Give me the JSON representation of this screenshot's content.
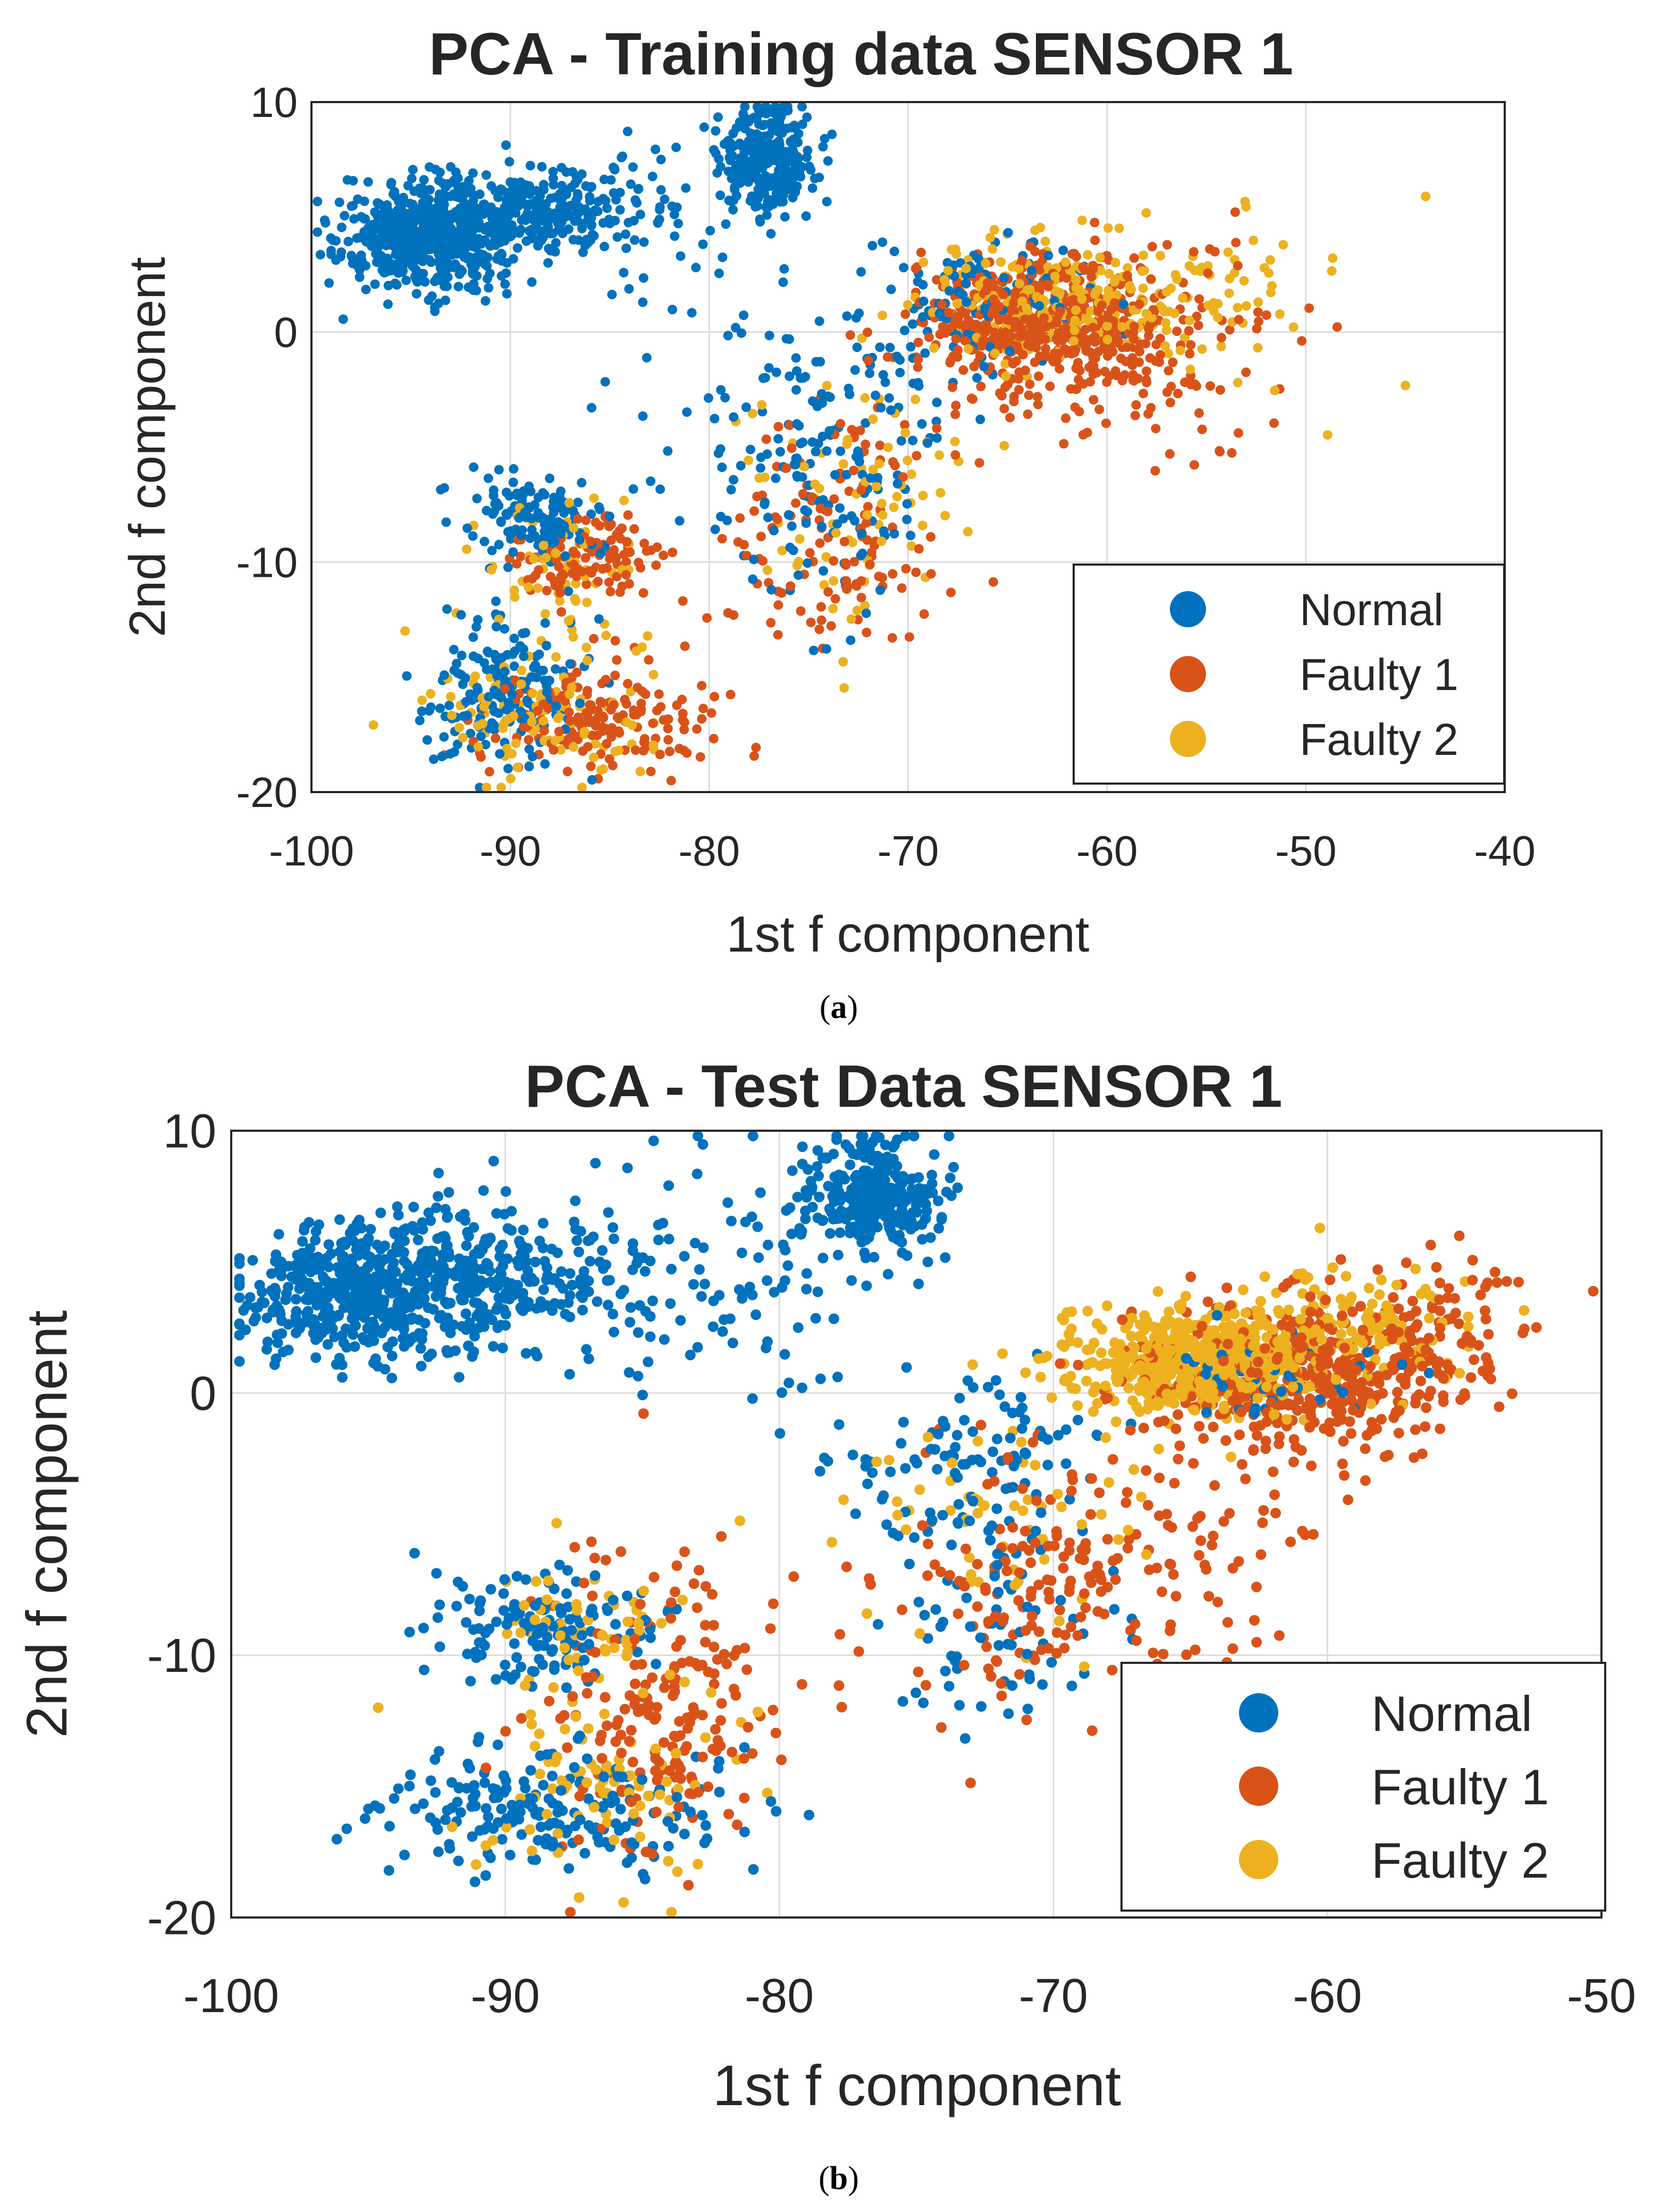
{
  "colors": {
    "normal": "#0072BD",
    "faulty1": "#D95319",
    "faulty2": "#EDB120"
  },
  "chart_data": [
    {
      "type": "scatter",
      "caption": "a",
      "title": "PCA - Training data SENSOR 1",
      "xlabel": "1st f component",
      "ylabel": "2nd f component",
      "xlim": [
        -100,
        -40
      ],
      "ylim": [
        -20,
        10
      ],
      "xticks": [
        "-100",
        "-90",
        "-80",
        "-70",
        "-60",
        "-50",
        "-40"
      ],
      "yticks": [
        "-20",
        "-10",
        "0",
        "10"
      ],
      "grid": true,
      "legend_position": "bottom-right",
      "series": [
        {
          "name": "Normal",
          "color": "#0072BD",
          "clusters": [
            {
              "cx": -94.5,
              "cy": 4.0,
              "sx": 2.0,
              "sy": 1.2,
              "n": 520
            },
            {
              "cx": -89.5,
              "cy": 5.2,
              "sx": 2.2,
              "sy": 0.9,
              "n": 260
            },
            {
              "cx": -84.0,
              "cy": 5.5,
              "sx": 3.0,
              "sy": 1.6,
              "n": 90
            },
            {
              "cx": -77.0,
              "cy": 7.5,
              "sx": 1.2,
              "sy": 1.2,
              "n": 280
            },
            {
              "cx": -66.5,
              "cy": 1.5,
              "sx": 3.0,
              "sy": 1.5,
              "n": 100
            },
            {
              "cx": -89.0,
              "cy": -8.0,
              "sx": 1.6,
              "sy": 0.9,
              "n": 130
            },
            {
              "cx": -90.5,
              "cy": -15.5,
              "sx": 1.8,
              "sy": 1.6,
              "n": 180
            },
            {
              "cx": -74.5,
              "cy": -6.5,
              "sx": 2.6,
              "sy": 3.2,
              "n": 130
            },
            {
              "cx": -70.5,
              "cy": -3.5,
              "sx": 1.6,
              "sy": 2.5,
              "n": 40
            },
            {
              "cx": -80.0,
              "cy": -2.5,
              "sx": 3.5,
              "sy": 5.0,
              "n": 30
            }
          ]
        },
        {
          "name": "Faulty 1",
          "color": "#D95319",
          "clusters": [
            {
              "cx": -63.5,
              "cy": 0.3,
              "sx": 3.2,
              "sy": 1.5,
              "n": 520
            },
            {
              "cx": -57.0,
              "cy": -1.5,
              "sx": 3.2,
              "sy": 2.5,
              "n": 90
            },
            {
              "cx": -86.0,
              "cy": -10.0,
              "sx": 1.8,
              "sy": 1.0,
              "n": 110
            },
            {
              "cx": -85.5,
              "cy": -17.0,
              "sx": 3.0,
              "sy": 1.2,
              "n": 170
            },
            {
              "cx": -73.5,
              "cy": -8.5,
              "sx": 2.8,
              "sy": 3.0,
              "n": 130
            }
          ]
        },
        {
          "name": "Faulty 2",
          "color": "#EDB120",
          "clusters": [
            {
              "cx": -63.0,
              "cy": 1.5,
              "sx": 3.0,
              "sy": 1.3,
              "n": 220
            },
            {
              "cx": -55.0,
              "cy": 1.5,
              "sx": 3.5,
              "sy": 1.8,
              "n": 70
            },
            {
              "cx": -87.5,
              "cy": -10.0,
              "sx": 2.0,
              "sy": 1.2,
              "n": 60
            },
            {
              "cx": -88.5,
              "cy": -16.5,
              "sx": 2.8,
              "sy": 1.6,
              "n": 120
            },
            {
              "cx": -72.5,
              "cy": -7.5,
              "sx": 2.8,
              "sy": 3.0,
              "n": 80
            }
          ]
        }
      ]
    },
    {
      "type": "scatter",
      "caption": "b",
      "title": "PCA - Test Data SENSOR 1",
      "xlabel": "1st f component",
      "ylabel": "2nd f component",
      "xlim": [
        -100,
        -50
      ],
      "ylim": [
        -20,
        10
      ],
      "xticks": [
        "-100",
        "-90",
        "-80",
        "-70",
        "-60",
        "-50"
      ],
      "yticks": [
        "-20",
        "-10",
        "0",
        "10"
      ],
      "grid": true,
      "legend_position": "bottom-right",
      "series": [
        {
          "name": "Normal",
          "color": "#0072BD",
          "clusters": [
            {
              "cx": -95.0,
              "cy": 3.8,
              "sx": 2.3,
              "sy": 1.3,
              "n": 520
            },
            {
              "cx": -90.5,
              "cy": 4.5,
              "sx": 2.0,
              "sy": 1.3,
              "n": 200
            },
            {
              "cx": -84.0,
              "cy": 4.5,
              "sx": 3.0,
              "sy": 2.0,
              "n": 90
            },
            {
              "cx": -76.5,
              "cy": 7.5,
              "sx": 1.2,
              "sy": 1.1,
              "n": 280
            },
            {
              "cx": -73.0,
              "cy": -3.0,
              "sx": 2.5,
              "sy": 2.0,
              "n": 110
            },
            {
              "cx": -89.0,
              "cy": -9.0,
              "sx": 2.2,
              "sy": 1.2,
              "n": 140
            },
            {
              "cx": -88.0,
              "cy": -16.0,
              "sx": 3.3,
              "sy": 1.3,
              "n": 200
            },
            {
              "cx": -71.5,
              "cy": -9.5,
              "sx": 2.4,
              "sy": 1.8,
              "n": 60
            },
            {
              "cx": -62.0,
              "cy": 0.5,
              "sx": 2.2,
              "sy": 1.0,
              "n": 50
            },
            {
              "cx": -80.0,
              "cy": 4.0,
              "sx": 3.0,
              "sy": 3.5,
              "n": 40
            }
          ]
        },
        {
          "name": "Faulty 1",
          "color": "#D95319",
          "clusters": [
            {
              "cx": -61.5,
              "cy": 0.5,
              "sx": 3.0,
              "sy": 1.5,
              "n": 360
            },
            {
              "cx": -57.0,
              "cy": 1.8,
              "sx": 2.3,
              "sy": 1.5,
              "n": 140
            },
            {
              "cx": -84.5,
              "cy": -12.0,
              "sx": 2.3,
              "sy": 3.0,
              "n": 200
            },
            {
              "cx": -70.0,
              "cy": -7.0,
              "sx": 2.8,
              "sy": 2.8,
              "n": 160
            },
            {
              "cx": -65.0,
              "cy": -7.0,
              "sx": 2.2,
              "sy": 2.5,
              "n": 50
            }
          ]
        },
        {
          "name": "Faulty 2",
          "color": "#EDB120",
          "clusters": [
            {
              "cx": -64.5,
              "cy": 1.2,
              "sx": 2.5,
              "sy": 1.0,
              "n": 560
            },
            {
              "cx": -59.0,
              "cy": 2.5,
              "sx": 2.5,
              "sy": 1.2,
              "n": 120
            },
            {
              "cx": -87.0,
              "cy": -9.0,
              "sx": 2.0,
              "sy": 1.5,
              "n": 60
            },
            {
              "cx": -86.0,
              "cy": -15.0,
              "sx": 2.5,
              "sy": 1.5,
              "n": 80
            },
            {
              "cx": -72.0,
              "cy": -5.0,
              "sx": 2.5,
              "sy": 2.5,
              "n": 60
            }
          ]
        }
      ]
    }
  ]
}
